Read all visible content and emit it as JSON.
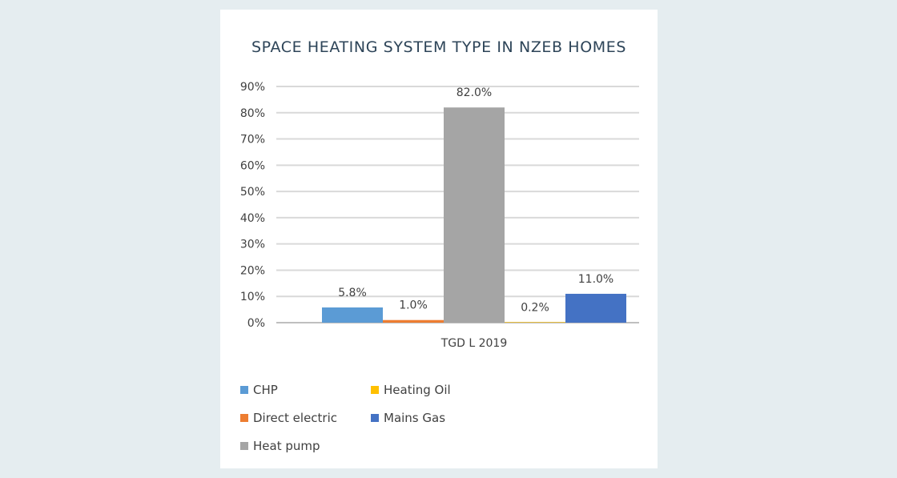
{
  "chart_data": {
    "type": "bar",
    "title": "SPACE HEATING SYSTEM TYPE IN NZEB HOMES",
    "categories": [
      "TGD L 2019"
    ],
    "series": [
      {
        "name": "CHP",
        "color": "#5b9bd5",
        "values": [
          5.8
        ],
        "label": "5.8%"
      },
      {
        "name": "Direct electric",
        "color": "#ed7d31",
        "values": [
          1.0
        ],
        "label": "1.0%"
      },
      {
        "name": "Heat pump",
        "color": "#a5a5a5",
        "values": [
          82.0
        ],
        "label": "82.0%"
      },
      {
        "name": "Heating Oil",
        "color": "#ffc000",
        "values": [
          0.2
        ],
        "label": "0.2%"
      },
      {
        "name": "Mains Gas",
        "color": "#4472c4",
        "values": [
          11.0
        ],
        "label": "11.0%"
      }
    ],
    "ylim": [
      0,
      90
    ],
    "yticks": [
      "0%",
      "10%",
      "20%",
      "30%",
      "40%",
      "50%",
      "60%",
      "70%",
      "80%",
      "90%"
    ],
    "grid": true,
    "legend_position": "bottom"
  }
}
